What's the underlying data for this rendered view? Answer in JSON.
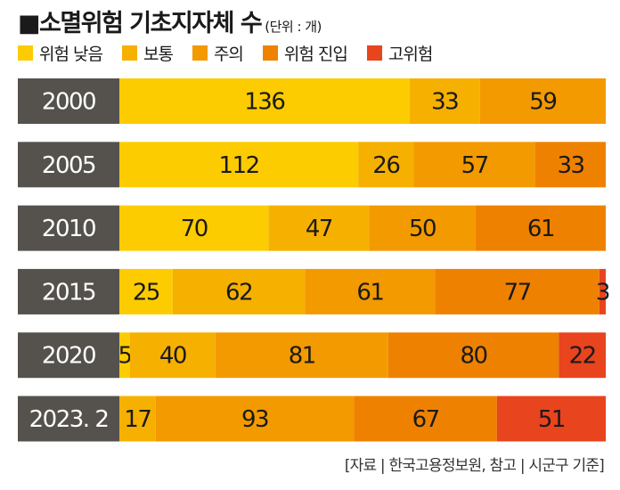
{
  "title": "■소멸위험 기초지자체 수",
  "unit": "(단위 : 개)",
  "source": "[자료 | 한국고용정보원, 참고 | 시군구 기준]",
  "colors": {
    "year_box": "#55524e",
    "year_text": "#ffffff",
    "segments": [
      "#fccc00",
      "#f6b000",
      "#f39a00",
      "#ef8100",
      "#e8441e"
    ]
  },
  "chart_data": {
    "type": "bar",
    "stacked": true,
    "orientation": "horizontal",
    "categories": [
      "2000",
      "2005",
      "2010",
      "2015",
      "2020",
      "2023. 2"
    ],
    "series": [
      {
        "name": "위험 낮음",
        "values": [
          136,
          112,
          70,
          25,
          5,
          0
        ]
      },
      {
        "name": "보통",
        "values": [
          33,
          26,
          47,
          62,
          40,
          17
        ]
      },
      {
        "name": "주의",
        "values": [
          59,
          57,
          50,
          61,
          81,
          93
        ]
      },
      {
        "name": "위험 진입",
        "values": [
          0,
          33,
          61,
          77,
          80,
          67
        ]
      },
      {
        "name": "고위험",
        "values": [
          0,
          0,
          0,
          3,
          22,
          51
        ]
      }
    ],
    "xlim": [
      0,
      228
    ],
    "legend": "top"
  }
}
